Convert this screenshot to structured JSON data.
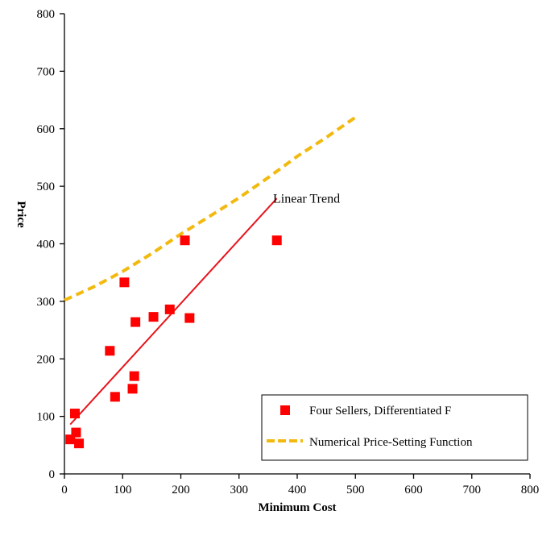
{
  "chart_data": {
    "type": "scatter",
    "title": "",
    "xlabel": "Minimum Cost",
    "ylabel": "Price",
    "xlim": [
      0,
      800
    ],
    "ylim": [
      0,
      800
    ],
    "x_ticks": [
      0,
      100,
      200,
      300,
      400,
      500,
      600,
      700,
      800
    ],
    "y_ticks": [
      0,
      100,
      200,
      300,
      400,
      500,
      600,
      700,
      800
    ],
    "grid": false,
    "legend_position": "bottom-right",
    "series": [
      {
        "name": "Four Sellers, Differentiated F",
        "kind": "scatter",
        "color": "#ff0000",
        "marker": "square",
        "points": [
          [
            10,
            60
          ],
          [
            18,
            105
          ],
          [
            20,
            72
          ],
          [
            25,
            53
          ],
          [
            78,
            214
          ],
          [
            87,
            134
          ],
          [
            103,
            333
          ],
          [
            117,
            148
          ],
          [
            120,
            170
          ],
          [
            122,
            264
          ],
          [
            153,
            273
          ],
          [
            181,
            286
          ],
          [
            207,
            406
          ],
          [
            215,
            271
          ],
          [
            365,
            406
          ]
        ]
      },
      {
        "name": "Numerical Price-Setting Function",
        "kind": "line",
        "color": "#f2b90f",
        "dash": "dashed",
        "points": [
          [
            0,
            302
          ],
          [
            50,
            325
          ],
          [
            100,
            352
          ],
          [
            150,
            383
          ],
          [
            200,
            417
          ],
          [
            250,
            448
          ],
          [
            300,
            480
          ],
          [
            350,
            515
          ],
          [
            400,
            552
          ],
          [
            450,
            585
          ],
          [
            500,
            620
          ]
        ]
      }
    ],
    "trend": {
      "kind": "line",
      "color": "#e8141b",
      "points": [
        [
          10,
          86
        ],
        [
          365,
          479
        ]
      ]
    },
    "annotations": [
      {
        "text": "Linear Trend",
        "x": 400,
        "y": 480
      }
    ]
  }
}
